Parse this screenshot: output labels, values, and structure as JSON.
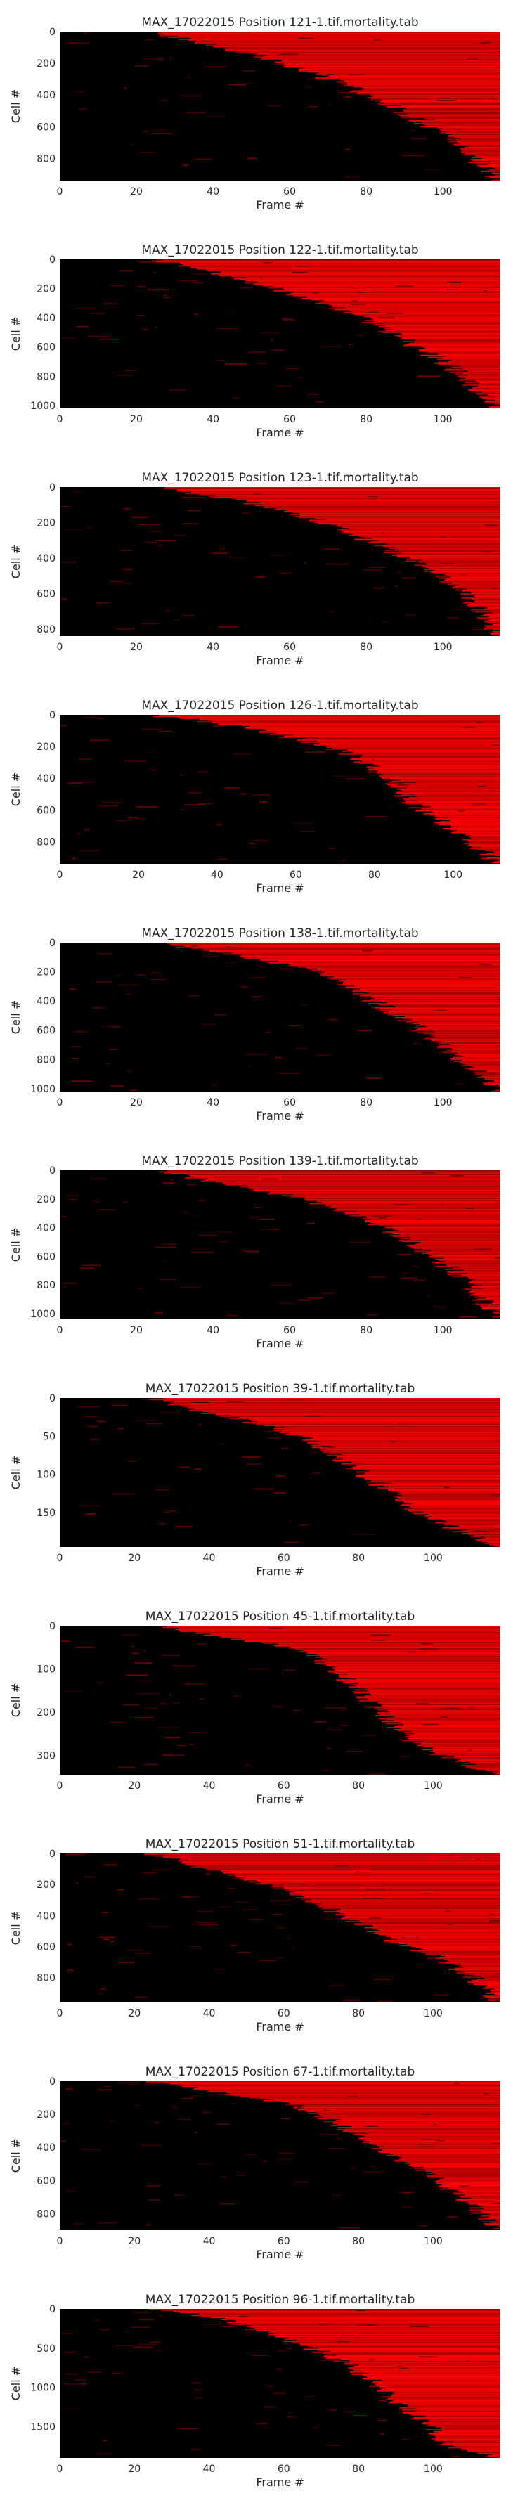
{
  "figure": {
    "background": "#ffffff",
    "heat_low_color": "#000000",
    "heat_high_color": "#ff0000"
  },
  "chart_data": [
    {
      "type": "heatmap",
      "title": "MAX_17022015 Position 121-1.tif.mortality.tab",
      "xlabel": "Frame #",
      "ylabel": "Cell #",
      "xlim": [
        0,
        115
      ],
      "ylim": [
        940,
        0
      ],
      "xticks": [
        0,
        20,
        40,
        60,
        80,
        100
      ],
      "yticks": [
        0,
        200,
        400,
        600,
        800
      ],
      "death_curve": [
        [
          25,
          0
        ],
        [
          35,
          60
        ],
        [
          45,
          110
        ],
        [
          55,
          170
        ],
        [
          65,
          250
        ],
        [
          75,
          340
        ],
        [
          85,
          450
        ],
        [
          95,
          580
        ],
        [
          105,
          720
        ],
        [
          115,
          940
        ]
      ],
      "grid": false,
      "legend": "none",
      "colormap": "black-red"
    },
    {
      "type": "heatmap",
      "title": "MAX_17022015 Position 122-1.tif.mortality.tab",
      "xlabel": "Frame #",
      "ylabel": "Cell #",
      "xlim": [
        0,
        115
      ],
      "ylim": [
        1020,
        0
      ],
      "xticks": [
        0,
        20,
        40,
        60,
        80,
        100
      ],
      "yticks": [
        0,
        200,
        400,
        600,
        800,
        1000
      ],
      "death_curve": [
        [
          25,
          0
        ],
        [
          35,
          60
        ],
        [
          45,
          120
        ],
        [
          55,
          190
        ],
        [
          65,
          270
        ],
        [
          75,
          360
        ],
        [
          85,
          480
        ],
        [
          95,
          620
        ],
        [
          105,
          790
        ],
        [
          115,
          1020
        ]
      ],
      "grid": false,
      "legend": "none",
      "colormap": "black-red"
    },
    {
      "type": "heatmap",
      "title": "MAX_17022015 Position 123-1.tif.mortality.tab",
      "xlabel": "Frame #",
      "ylabel": "Cell #",
      "xlim": [
        0,
        115
      ],
      "ylim": [
        840,
        0
      ],
      "xticks": [
        0,
        20,
        40,
        60,
        80,
        100
      ],
      "yticks": [
        0,
        200,
        400,
        600,
        800
      ],
      "death_curve": [
        [
          25,
          0
        ],
        [
          35,
          40
        ],
        [
          45,
          70
        ],
        [
          55,
          110
        ],
        [
          65,
          170
        ],
        [
          75,
          250
        ],
        [
          85,
          340
        ],
        [
          95,
          450
        ],
        [
          105,
          580
        ],
        [
          115,
          840
        ]
      ],
      "grid": false,
      "legend": "none",
      "colormap": "black-red"
    },
    {
      "type": "heatmap",
      "title": "MAX_17022015 Position 126-1.tif.mortality.tab",
      "xlabel": "Frame #",
      "ylabel": "Cell #",
      "xlim": [
        0,
        112
      ],
      "ylim": [
        940,
        0
      ],
      "xticks": [
        0,
        20,
        40,
        60,
        80,
        100
      ],
      "yticks": [
        0,
        200,
        400,
        600,
        800
      ],
      "death_curve": [
        [
          22,
          0
        ],
        [
          35,
          30
        ],
        [
          45,
          70
        ],
        [
          55,
          120
        ],
        [
          65,
          180
        ],
        [
          75,
          260
        ],
        [
          82,
          370
        ],
        [
          90,
          560
        ],
        [
          100,
          720
        ],
        [
          112,
          940
        ]
      ],
      "grid": false,
      "legend": "none",
      "colormap": "black-red"
    },
    {
      "type": "heatmap",
      "title": "MAX_17022015 Position 138-1.tif.mortality.tab",
      "xlabel": "Frame #",
      "ylabel": "Cell #",
      "xlim": [
        0,
        115
      ],
      "ylim": [
        1020,
        0
      ],
      "xticks": [
        0,
        20,
        40,
        60,
        80,
        100
      ],
      "yticks": [
        0,
        200,
        400,
        600,
        800,
        1000
      ],
      "death_curve": [
        [
          25,
          0
        ],
        [
          35,
          40
        ],
        [
          45,
          80
        ],
        [
          55,
          130
        ],
        [
          65,
          180
        ],
        [
          72,
          240
        ],
        [
          80,
          370
        ],
        [
          90,
          520
        ],
        [
          100,
          690
        ],
        [
          115,
          1020
        ]
      ],
      "grid": false,
      "legend": "none",
      "colormap": "black-red"
    },
    {
      "type": "heatmap",
      "title": "MAX_17022015 Position 139-1.tif.mortality.tab",
      "xlabel": "Frame #",
      "ylabel": "Cell #",
      "xlim": [
        0,
        115
      ],
      "ylim": [
        1040,
        0
      ],
      "xticks": [
        0,
        20,
        40,
        60,
        80,
        100
      ],
      "yticks": [
        0,
        200,
        400,
        600,
        800,
        1000
      ],
      "death_curve": [
        [
          25,
          0
        ],
        [
          35,
          50
        ],
        [
          45,
          100
        ],
        [
          55,
          150
        ],
        [
          65,
          210
        ],
        [
          75,
          290
        ],
        [
          85,
          400
        ],
        [
          95,
          560
        ],
        [
          105,
          740
        ],
        [
          115,
          1040
        ]
      ],
      "grid": false,
      "legend": "none",
      "colormap": "black-red"
    },
    {
      "type": "heatmap",
      "title": "MAX_17022015 Position 39-1.tif.mortality.tab",
      "xlabel": "Frame #",
      "ylabel": "Cell #",
      "xlim": [
        0,
        118
      ],
      "ylim": [
        195,
        0
      ],
      "xticks": [
        0,
        20,
        40,
        60,
        80,
        100
      ],
      "yticks": [
        0,
        50,
        100,
        150
      ],
      "death_curve": [
        [
          25,
          0
        ],
        [
          35,
          15
        ],
        [
          45,
          25
        ],
        [
          55,
          35
        ],
        [
          65,
          50
        ],
        [
          72,
          70
        ],
        [
          80,
          95
        ],
        [
          90,
          130
        ],
        [
          100,
          160
        ],
        [
          118,
          195
        ]
      ],
      "grid": false,
      "legend": "none",
      "colormap": "black-red"
    },
    {
      "type": "heatmap",
      "title": "MAX_17022015 Position 45-1.tif.mortality.tab",
      "xlabel": "Frame #",
      "ylabel": "Cell #",
      "xlim": [
        0,
        118
      ],
      "ylim": [
        345,
        0
      ],
      "xticks": [
        0,
        20,
        40,
        60,
        80,
        100
      ],
      "yticks": [
        0,
        100,
        200,
        300
      ],
      "death_curve": [
        [
          25,
          0
        ],
        [
          40,
          20
        ],
        [
          55,
          40
        ],
        [
          65,
          60
        ],
        [
          72,
          90
        ],
        [
          80,
          150
        ],
        [
          88,
          220
        ],
        [
          95,
          270
        ],
        [
          105,
          310
        ],
        [
          118,
          345
        ]
      ],
      "grid": false,
      "legend": "none",
      "colormap": "black-red"
    },
    {
      "type": "heatmap",
      "title": "MAX_17022015 Position 51-1.tif.mortality.tab",
      "xlabel": "Frame #",
      "ylabel": "Cell #",
      "xlim": [
        0,
        118
      ],
      "ylim": [
        960,
        0
      ],
      "xticks": [
        0,
        20,
        40,
        60,
        80,
        100
      ],
      "yticks": [
        0,
        200,
        400,
        600,
        800
      ],
      "death_curve": [
        [
          25,
          0
        ],
        [
          40,
          100
        ],
        [
          50,
          160
        ],
        [
          60,
          230
        ],
        [
          70,
          330
        ],
        [
          80,
          450
        ],
        [
          90,
          570
        ],
        [
          100,
          660
        ],
        [
          110,
          780
        ],
        [
          118,
          960
        ]
      ],
      "grid": false,
      "legend": "none",
      "colormap": "black-red"
    },
    {
      "type": "heatmap",
      "title": "MAX_17022015 Position 67-1.tif.mortality.tab",
      "xlabel": "Frame #",
      "ylabel": "Cell #",
      "xlim": [
        0,
        118
      ],
      "ylim": [
        900,
        0
      ],
      "xticks": [
        0,
        20,
        40,
        60,
        80,
        100
      ],
      "yticks": [
        0,
        200,
        400,
        600,
        800
      ],
      "death_curve": [
        [
          25,
          0
        ],
        [
          35,
          40
        ],
        [
          45,
          80
        ],
        [
          60,
          130
        ],
        [
          70,
          200
        ],
        [
          80,
          330
        ],
        [
          90,
          450
        ],
        [
          100,
          580
        ],
        [
          110,
          740
        ],
        [
          118,
          900
        ]
      ],
      "grid": false,
      "legend": "none",
      "colormap": "black-red"
    },
    {
      "type": "heatmap",
      "title": "MAX_17022015 Position 96-1.tif.mortality.tab",
      "xlabel": "Frame #",
      "ylabel": "Cell #",
      "xlim": [
        0,
        118
      ],
      "ylim": [
        1900,
        0
      ],
      "xticks": [
        0,
        20,
        40,
        60,
        80,
        100
      ],
      "yticks": [
        0,
        500,
        1000,
        1500
      ],
      "death_curve": [
        [
          25,
          0
        ],
        [
          35,
          50
        ],
        [
          45,
          150
        ],
        [
          55,
          300
        ],
        [
          65,
          450
        ],
        [
          75,
          650
        ],
        [
          85,
          950
        ],
        [
          95,
          1350
        ],
        [
          105,
          1750
        ],
        [
          118,
          1900
        ]
      ],
      "grid": false,
      "legend": "none",
      "colormap": "black-red"
    }
  ]
}
